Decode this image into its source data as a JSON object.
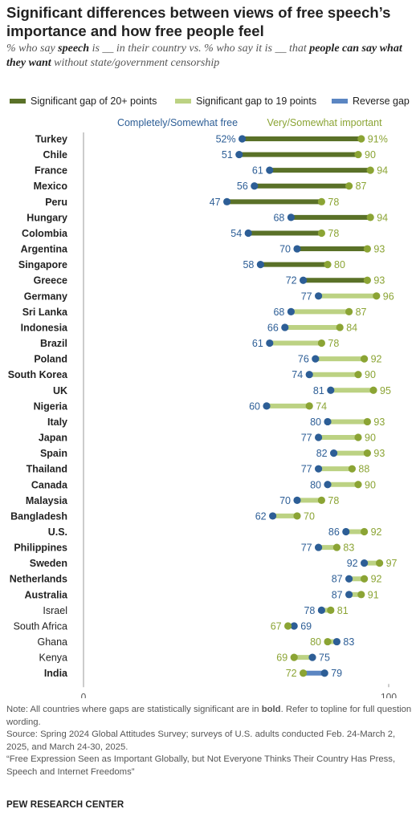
{
  "title": "Significant differences between views of free speech’s importance and how free people feel",
  "subtitle": {
    "p1": "% who say ",
    "b1": "speech",
    "p2": " is __ in their country vs. % who say it is __ that ",
    "b2": "people can say what they want",
    "p3": " without state/government censorship"
  },
  "legend": [
    {
      "label": "Significant gap of 20+ points",
      "color": "#5a7128"
    },
    {
      "label": "Significant gap to 19 points",
      "color": "#bcd283"
    },
    {
      "label": "Reverse gap",
      "color": "#5b86c2"
    }
  ],
  "colors": {
    "free_dot": "#2d5e96",
    "important_dot": "#8ba434",
    "free_text": "#2d5e96",
    "important_text": "#8ba434",
    "axis": "#999999"
  },
  "chart_data": {
    "type": "dumbbell",
    "series": [
      {
        "name": "Completely/Somewhat free"
      },
      {
        "name": "Very/Somewhat important"
      }
    ],
    "xlim": [
      0,
      100
    ],
    "x_ticks": [
      "0",
      "100"
    ],
    "rows": [
      {
        "country": "Turkey",
        "free": 52,
        "important": 91,
        "free_label": "52%",
        "important_label": "91%",
        "gap": "20+",
        "bold": true
      },
      {
        "country": "Chile",
        "free": 51,
        "important": 90,
        "free_label": "51",
        "important_label": "90",
        "gap": "20+",
        "bold": true
      },
      {
        "country": "France",
        "free": 61,
        "important": 94,
        "free_label": "61",
        "important_label": "94",
        "gap": "20+",
        "bold": true
      },
      {
        "country": "Mexico",
        "free": 56,
        "important": 87,
        "free_label": "56",
        "important_label": "87",
        "gap": "20+",
        "bold": true
      },
      {
        "country": "Peru",
        "free": 47,
        "important": 78,
        "free_label": "47",
        "important_label": "78",
        "gap": "20+",
        "bold": true
      },
      {
        "country": "Hungary",
        "free": 68,
        "important": 94,
        "free_label": "68",
        "important_label": "94",
        "gap": "20+",
        "bold": true
      },
      {
        "country": "Colombia",
        "free": 54,
        "important": 78,
        "free_label": "54",
        "important_label": "78",
        "gap": "20+",
        "bold": true
      },
      {
        "country": "Argentina",
        "free": 70,
        "important": 93,
        "free_label": "70",
        "important_label": "93",
        "gap": "20+",
        "bold": true
      },
      {
        "country": "Singapore",
        "free": 58,
        "important": 80,
        "free_label": "58",
        "important_label": "80",
        "gap": "20+",
        "bold": true
      },
      {
        "country": "Greece",
        "free": 72,
        "important": 93,
        "free_label": "72",
        "important_label": "93",
        "gap": "20+",
        "bold": true
      },
      {
        "country": "Germany",
        "free": 77,
        "important": 96,
        "free_label": "77",
        "important_label": "96",
        "gap": "19",
        "bold": true
      },
      {
        "country": "Sri Lanka",
        "free": 68,
        "important": 87,
        "free_label": "68",
        "important_label": "87",
        "gap": "19",
        "bold": true
      },
      {
        "country": "Indonesia",
        "free": 66,
        "important": 84,
        "free_label": "66",
        "important_label": "84",
        "gap": "19",
        "bold": true
      },
      {
        "country": "Brazil",
        "free": 61,
        "important": 78,
        "free_label": "61",
        "important_label": "78",
        "gap": "19",
        "bold": true
      },
      {
        "country": "Poland",
        "free": 76,
        "important": 92,
        "free_label": "76",
        "important_label": "92",
        "gap": "19",
        "bold": true
      },
      {
        "country": "South Korea",
        "free": 74,
        "important": 90,
        "free_label": "74",
        "important_label": "90",
        "gap": "19",
        "bold": true
      },
      {
        "country": "UK",
        "free": 81,
        "important": 95,
        "free_label": "81",
        "important_label": "95",
        "gap": "19",
        "bold": true
      },
      {
        "country": "Nigeria",
        "free": 60,
        "important": 74,
        "free_label": "60",
        "important_label": "74",
        "gap": "19",
        "bold": true
      },
      {
        "country": "Italy",
        "free": 80,
        "important": 93,
        "free_label": "80",
        "important_label": "93",
        "gap": "19",
        "bold": true
      },
      {
        "country": "Japan",
        "free": 77,
        "important": 90,
        "free_label": "77",
        "important_label": "90",
        "gap": "19",
        "bold": true
      },
      {
        "country": "Spain",
        "free": 82,
        "important": 93,
        "free_label": "82",
        "important_label": "93",
        "gap": "19",
        "bold": true
      },
      {
        "country": "Thailand",
        "free": 77,
        "important": 88,
        "free_label": "77",
        "important_label": "88",
        "gap": "19",
        "bold": true
      },
      {
        "country": "Canada",
        "free": 80,
        "important": 90,
        "free_label": "80",
        "important_label": "90",
        "gap": "19",
        "bold": true
      },
      {
        "country": "Malaysia",
        "free": 70,
        "important": 78,
        "free_label": "70",
        "important_label": "78",
        "gap": "19",
        "bold": true
      },
      {
        "country": "Bangladesh",
        "free": 62,
        "important": 70,
        "free_label": "62",
        "important_label": "70",
        "gap": "19",
        "bold": true
      },
      {
        "country": "U.S.",
        "free": 86,
        "important": 92,
        "free_label": "86",
        "important_label": "92",
        "gap": "19",
        "bold": true
      },
      {
        "country": "Philippines",
        "free": 77,
        "important": 83,
        "free_label": "77",
        "important_label": "83",
        "gap": "19",
        "bold": true
      },
      {
        "country": "Sweden",
        "free": 92,
        "important": 97,
        "free_label": "92",
        "important_label": "97",
        "gap": "19",
        "bold": true
      },
      {
        "country": "Netherlands",
        "free": 87,
        "important": 92,
        "free_label": "87",
        "important_label": "92",
        "gap": "19",
        "bold": true
      },
      {
        "country": "Australia",
        "free": 87,
        "important": 91,
        "free_label": "87",
        "important_label": "91",
        "gap": "19",
        "bold": true
      },
      {
        "country": "Israel",
        "free": 78,
        "important": 81,
        "free_label": "78",
        "important_label": "81",
        "gap": "none",
        "bold": false
      },
      {
        "country": "South Africa",
        "free": 69,
        "important": 67,
        "free_label": "69",
        "important_label": "67",
        "gap": "none",
        "bold": false
      },
      {
        "country": "Ghana",
        "free": 83,
        "important": 80,
        "free_label": "83",
        "important_label": "80",
        "gap": "none",
        "bold": false
      },
      {
        "country": "Kenya",
        "free": 75,
        "important": 69,
        "free_label": "75",
        "important_label": "69",
        "gap": "none",
        "bold": false
      },
      {
        "country": "India",
        "free": 79,
        "important": 72,
        "free_label": "79",
        "important_label": "72",
        "gap": "reverse",
        "bold": true
      }
    ]
  },
  "note": {
    "p1": "Note: All countries where gaps are statistically significant are in ",
    "bold_word": "bold",
    "p2": ". Refer to topline for full question wording.",
    "source": "Source: Spring 2024 Global Attitudes Survey; surveys of U.S. adults conducted Feb. 24-March 2, 2025, and March 24-30, 2025.",
    "report": "“Free Expression Seen as Important Globally, but Not Everyone Thinks Their Country Has Press, Speech and Internet Freedoms”"
  },
  "source_label": "PEW RESEARCH CENTER"
}
